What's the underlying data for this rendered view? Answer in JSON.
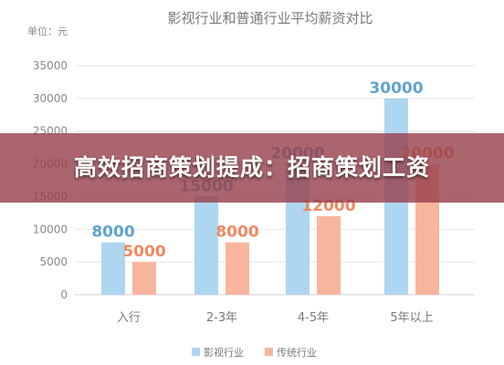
{
  "overlay": {
    "banner_text": "高效招商策划提成：招商策划工资"
  },
  "colors": {
    "series_film": "#aed6f1",
    "series_film_label": "#5fa3cf",
    "series_traditional": "#f7b59d",
    "series_traditional_label": "#ee8a62",
    "axis_text": "#8a8a8a",
    "grid": "#e6e6e6",
    "banner": "#963e4a"
  },
  "chart_data": {
    "type": "bar",
    "title": "影视行业和普通行业平均薪资对比",
    "unit_label": "单位：元",
    "categories": [
      "入行",
      "2-3年",
      "4-5年",
      "5年以上"
    ],
    "series": [
      {
        "name": "影视行业",
        "values": [
          8000,
          15000,
          20000,
          30000
        ]
      },
      {
        "name": "传统行业",
        "values": [
          5000,
          8000,
          12000,
          20000
        ]
      }
    ],
    "y_ticks": [
      0,
      5000,
      10000,
      15000,
      20000,
      25000,
      30000,
      35000
    ],
    "ylim": [
      0,
      35000
    ],
    "grid": true,
    "legend_position": "bottom"
  }
}
